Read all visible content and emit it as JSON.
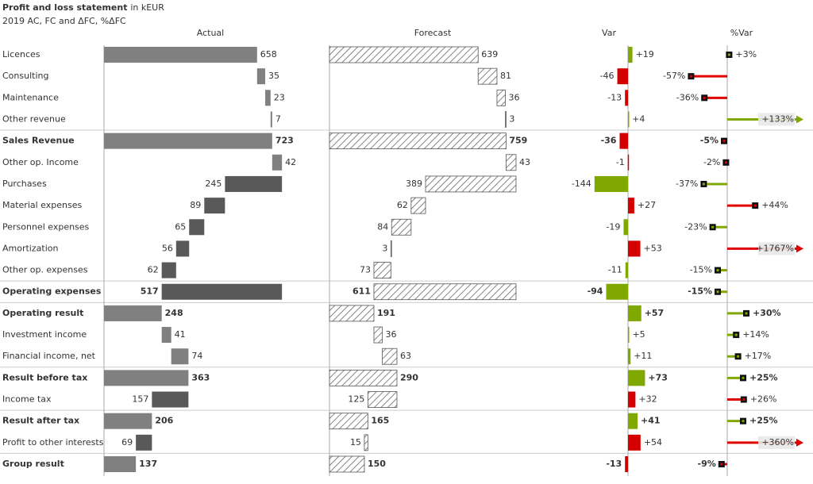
{
  "chart_data": {
    "type": "waterfall-table",
    "title": "Profit and loss statement",
    "title_unit": "in kEUR",
    "subtitle": "2019 AC, FC and ΔFC, %ΔFC",
    "categories": [
      "Licences",
      "Consulting",
      "Maintenance",
      "Other revenue",
      "Sales Revenue",
      "Other op. Income",
      "Purchases",
      "Material expenses",
      "Personnel expenses",
      "Amortization",
      "Other op. expenses",
      "Operating expenses",
      "Operating result",
      "Investment income",
      "Financial income, net",
      "Result before tax",
      "Income tax",
      "Result after tax",
      "Profit to other interests",
      "Group result"
    ],
    "kinds": [
      "plus",
      "plus",
      "plus",
      "plus",
      "total",
      "plus",
      "minus",
      "minus",
      "minus",
      "minus",
      "minus",
      "subtotal",
      "total",
      "plus",
      "plus",
      "total",
      "minus",
      "total",
      "minus",
      "total"
    ],
    "series": [
      {
        "name": "Actual",
        "color": "#808080",
        "deduction_color": "#595959",
        "values": [
          658,
          35,
          23,
          7,
          723,
          42,
          245,
          89,
          65,
          56,
          62,
          517,
          248,
          41,
          74,
          363,
          157,
          206,
          69,
          137
        ]
      },
      {
        "name": "Forecast",
        "color": "#555555",
        "values": [
          639,
          81,
          36,
          3,
          759,
          43,
          389,
          62,
          84,
          3,
          73,
          611,
          191,
          36,
          63,
          290,
          125,
          165,
          15,
          150
        ]
      },
      {
        "name": "Var",
        "color": "#7fa800",
        "bad_color": "#d40000",
        "values": [
          19,
          -46,
          -13,
          4,
          -36,
          -1,
          -144,
          27,
          -19,
          53,
          -11,
          -94,
          57,
          5,
          11,
          73,
          32,
          41,
          54,
          -13
        ],
        "value_labels": [
          "+19",
          "-46",
          "-13",
          "+4",
          "-36",
          "-1",
          "-144",
          "+27",
          "-19",
          "+53",
          "-11",
          "-94",
          "+57",
          "+5",
          "+11",
          "+73",
          "+32",
          "+41",
          "+54",
          "-13"
        ]
      },
      {
        "name": "%Var",
        "color": "#7fa800",
        "bad_color": "#e00000",
        "values": [
          3,
          -57,
          -36,
          133,
          -5,
          -2,
          -37,
          44,
          -23,
          1767,
          -15,
          -15,
          30,
          14,
          17,
          25,
          26,
          25,
          360,
          -9
        ],
        "value_labels": [
          "+3%",
          "-57%",
          "-36%",
          "+133%",
          "-5%",
          "-2%",
          "-37%",
          "+44%",
          "-23%",
          "+1767%",
          "-15%",
          "-15%",
          "+30%",
          "+14%",
          "+17%",
          "+25%",
          "+26%",
          "+25%",
          "+360%",
          "-9%"
        ]
      }
    ]
  }
}
